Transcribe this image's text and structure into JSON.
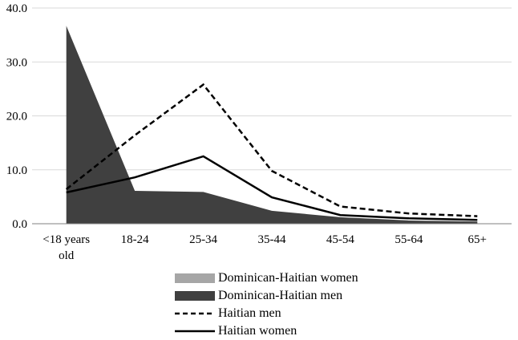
{
  "chart_data": {
    "type": "area",
    "categories": [
      "<18 years old",
      "18-24",
      "25-34",
      "35-44",
      "45-54",
      "55-64",
      "65+"
    ],
    "category_labels": [
      [
        "<18 years",
        "old"
      ],
      [
        "18-24"
      ],
      [
        "25-34"
      ],
      [
        "35-44"
      ],
      [
        "45-54"
      ],
      [
        "55-64"
      ],
      [
        "65+"
      ]
    ],
    "ylim": [
      0,
      40
    ],
    "yticks": [
      "0.0",
      "10.0",
      "20.0",
      "30.0",
      "40.0"
    ],
    "grid": true,
    "legend_position": "bottom",
    "series": [
      {
        "name": "Dominican-Haitian women",
        "type": "area",
        "color": "#a6a6a6",
        "values": [
          0.0,
          0.0,
          0.0,
          0.0,
          0.5,
          0.3,
          0.2
        ]
      },
      {
        "name": "Dominican-Haitian men",
        "type": "area",
        "color": "#404040",
        "values": [
          36.7,
          6.1,
          5.9,
          2.4,
          1.2,
          0.6,
          0.4
        ]
      },
      {
        "name": "Haitian men",
        "type": "line",
        "dash": "dashed",
        "color": "#000000",
        "values": [
          6.4,
          16.4,
          25.8,
          9.8,
          3.2,
          1.9,
          1.4
        ]
      },
      {
        "name": "Haitian women",
        "type": "line",
        "dash": "solid",
        "color": "#000000",
        "values": [
          5.8,
          8.6,
          12.5,
          4.9,
          1.6,
          1.0,
          0.7
        ]
      }
    ]
  }
}
